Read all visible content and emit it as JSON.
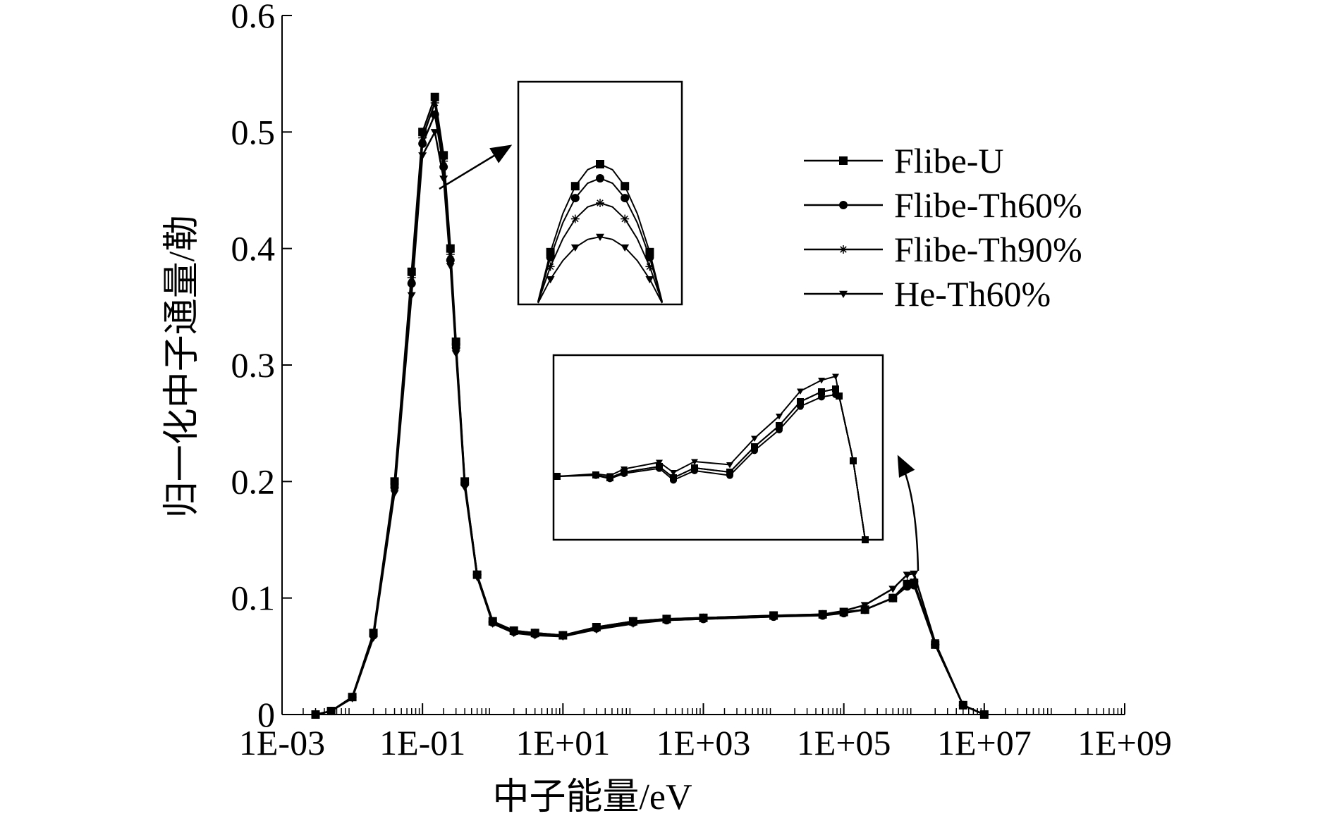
{
  "chart_data": {
    "type": "line",
    "title": "",
    "xlabel": "中子能量/eV",
    "ylabel": "归一化中子通量/勒",
    "x_scale": "log",
    "xlim": [
      "1E-03",
      "1E+09"
    ],
    "xlim_values": [
      0.001,
      1000000000
    ],
    "ylim": [
      0,
      0.6
    ],
    "grid": false,
    "legend_position": "right",
    "x_tick_labels": [
      "1E-03",
      "1E-01",
      "1E+01",
      "1E+03",
      "1E+05",
      "1E+07",
      "1E+09"
    ],
    "y_tick_labels": [
      "0",
      "0.1",
      "0.2",
      "0.3",
      "0.4",
      "0.5",
      "0.6"
    ],
    "x": [
      0.003,
      0.005,
      0.01,
      0.02,
      0.04,
      0.07,
      0.1,
      0.15,
      0.2,
      0.25,
      0.3,
      0.4,
      0.6,
      1,
      2,
      4,
      10,
      30,
      100,
      300,
      1000,
      10000,
      50000,
      100000,
      200000,
      500000,
      800000,
      1000000,
      2000000,
      5000000,
      10000000
    ],
    "series": [
      {
        "name": "Flibe-U",
        "marker": "square",
        "values": [
          0.0,
          0.003,
          0.015,
          0.07,
          0.2,
          0.38,
          0.5,
          0.53,
          0.48,
          0.4,
          0.32,
          0.2,
          0.12,
          0.08,
          0.072,
          0.07,
          0.068,
          0.075,
          0.08,
          0.082,
          0.083,
          0.085,
          0.086,
          0.088,
          0.09,
          0.1,
          0.112,
          0.113,
          0.06,
          0.008,
          0.0
        ]
      },
      {
        "name": "Flibe-Th60%",
        "marker": "circle",
        "values": [
          0.0,
          0.003,
          0.015,
          0.068,
          0.195,
          0.37,
          0.49,
          0.515,
          0.47,
          0.39,
          0.315,
          0.198,
          0.12,
          0.079,
          0.071,
          0.069,
          0.068,
          0.074,
          0.079,
          0.081,
          0.082,
          0.084,
          0.085,
          0.087,
          0.09,
          0.1,
          0.11,
          0.111,
          0.06,
          0.008,
          0.0
        ]
      },
      {
        "name": "Flibe-Th90%",
        "marker": "asterisk",
        "values": [
          0.0,
          0.003,
          0.015,
          0.069,
          0.198,
          0.375,
          0.495,
          0.525,
          0.475,
          0.395,
          0.318,
          0.199,
          0.12,
          0.08,
          0.072,
          0.07,
          0.068,
          0.075,
          0.08,
          0.082,
          0.083,
          0.085,
          0.086,
          0.088,
          0.09,
          0.1,
          0.113,
          0.114,
          0.06,
          0.008,
          0.0
        ]
      },
      {
        "name": "He-Th60%",
        "marker": "triangle-down",
        "values": [
          0.0,
          0.003,
          0.014,
          0.066,
          0.19,
          0.36,
          0.48,
          0.5,
          0.46,
          0.385,
          0.31,
          0.195,
          0.118,
          0.078,
          0.07,
          0.068,
          0.067,
          0.073,
          0.078,
          0.081,
          0.082,
          0.084,
          0.086,
          0.089,
          0.094,
          0.108,
          0.12,
          0.121,
          0.062,
          0.008,
          0.0
        ]
      }
    ],
    "insets": [
      {
        "name": "thermal-peak-zoom",
        "x_range": [
          0.15,
          0.4
        ]
      },
      {
        "name": "fast-region-zoom",
        "x_range": [
          0.6,
          10000000
        ]
      }
    ]
  }
}
